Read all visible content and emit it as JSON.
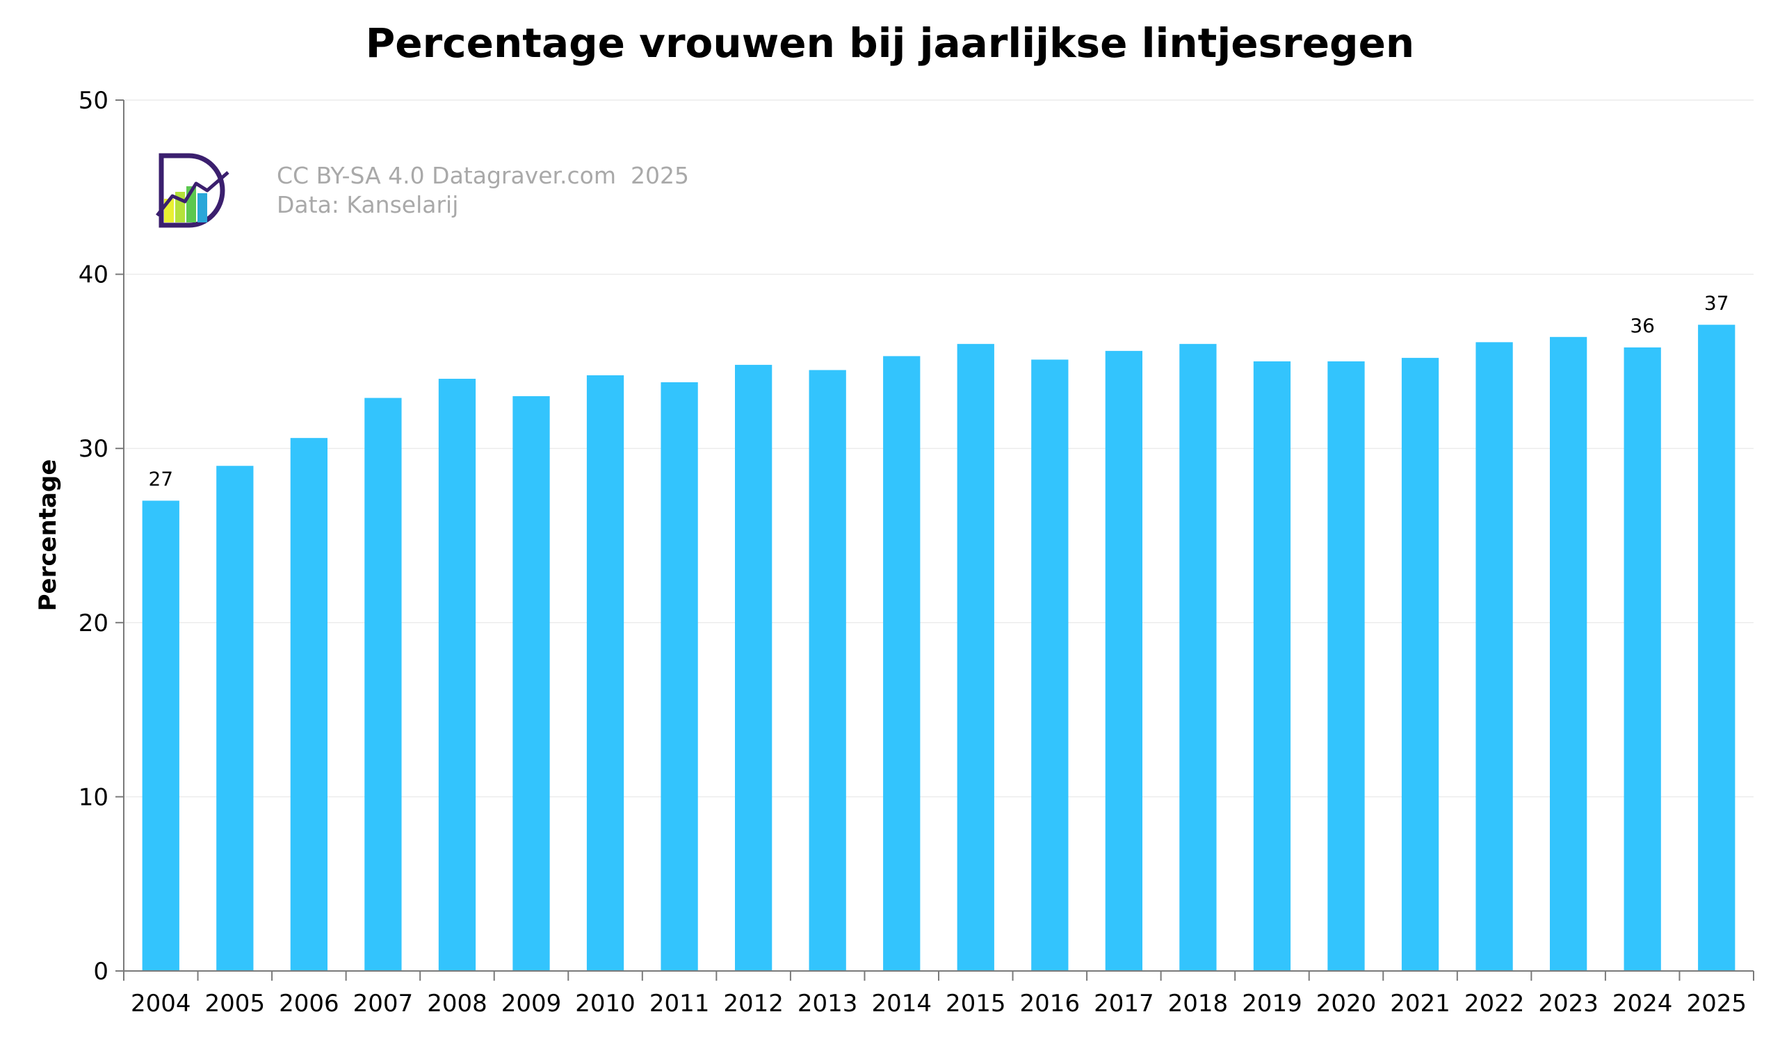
{
  "chart_data": {
    "type": "bar",
    "title": "Percentage vrouwen bij jaarlijkse lintjesregen",
    "ylabel": "Percentage",
    "xlabel": "",
    "ylim": [
      0,
      50
    ],
    "yticks": [
      0,
      10,
      20,
      30,
      40,
      50
    ],
    "grid": true,
    "categories": [
      "2004",
      "2005",
      "2006",
      "2007",
      "2008",
      "2009",
      "2010",
      "2011",
      "2012",
      "2013",
      "2014",
      "2015",
      "2016",
      "2017",
      "2018",
      "2019",
      "2020",
      "2021",
      "2022",
      "2023",
      "2024",
      "2025"
    ],
    "values": [
      27,
      29,
      30.6,
      32.9,
      34,
      33,
      34.2,
      33.8,
      34.8,
      34.5,
      35.3,
      36,
      35.1,
      35.6,
      36,
      35,
      35,
      35.2,
      36.1,
      36.4,
      35.8,
      37.1
    ],
    "data_labels": [
      {
        "category": "2004",
        "text": "27"
      },
      {
        "category": "2024",
        "text": "36"
      },
      {
        "category": "2025",
        "text": "37"
      }
    ],
    "bar_color": "#33c4fd"
  },
  "credit": {
    "line1": "CC BY-SA 4.0 Datagraver.com  2025",
    "line2": "Data: Kanselarij",
    "logo_icon": "datagraver-logo-icon"
  }
}
